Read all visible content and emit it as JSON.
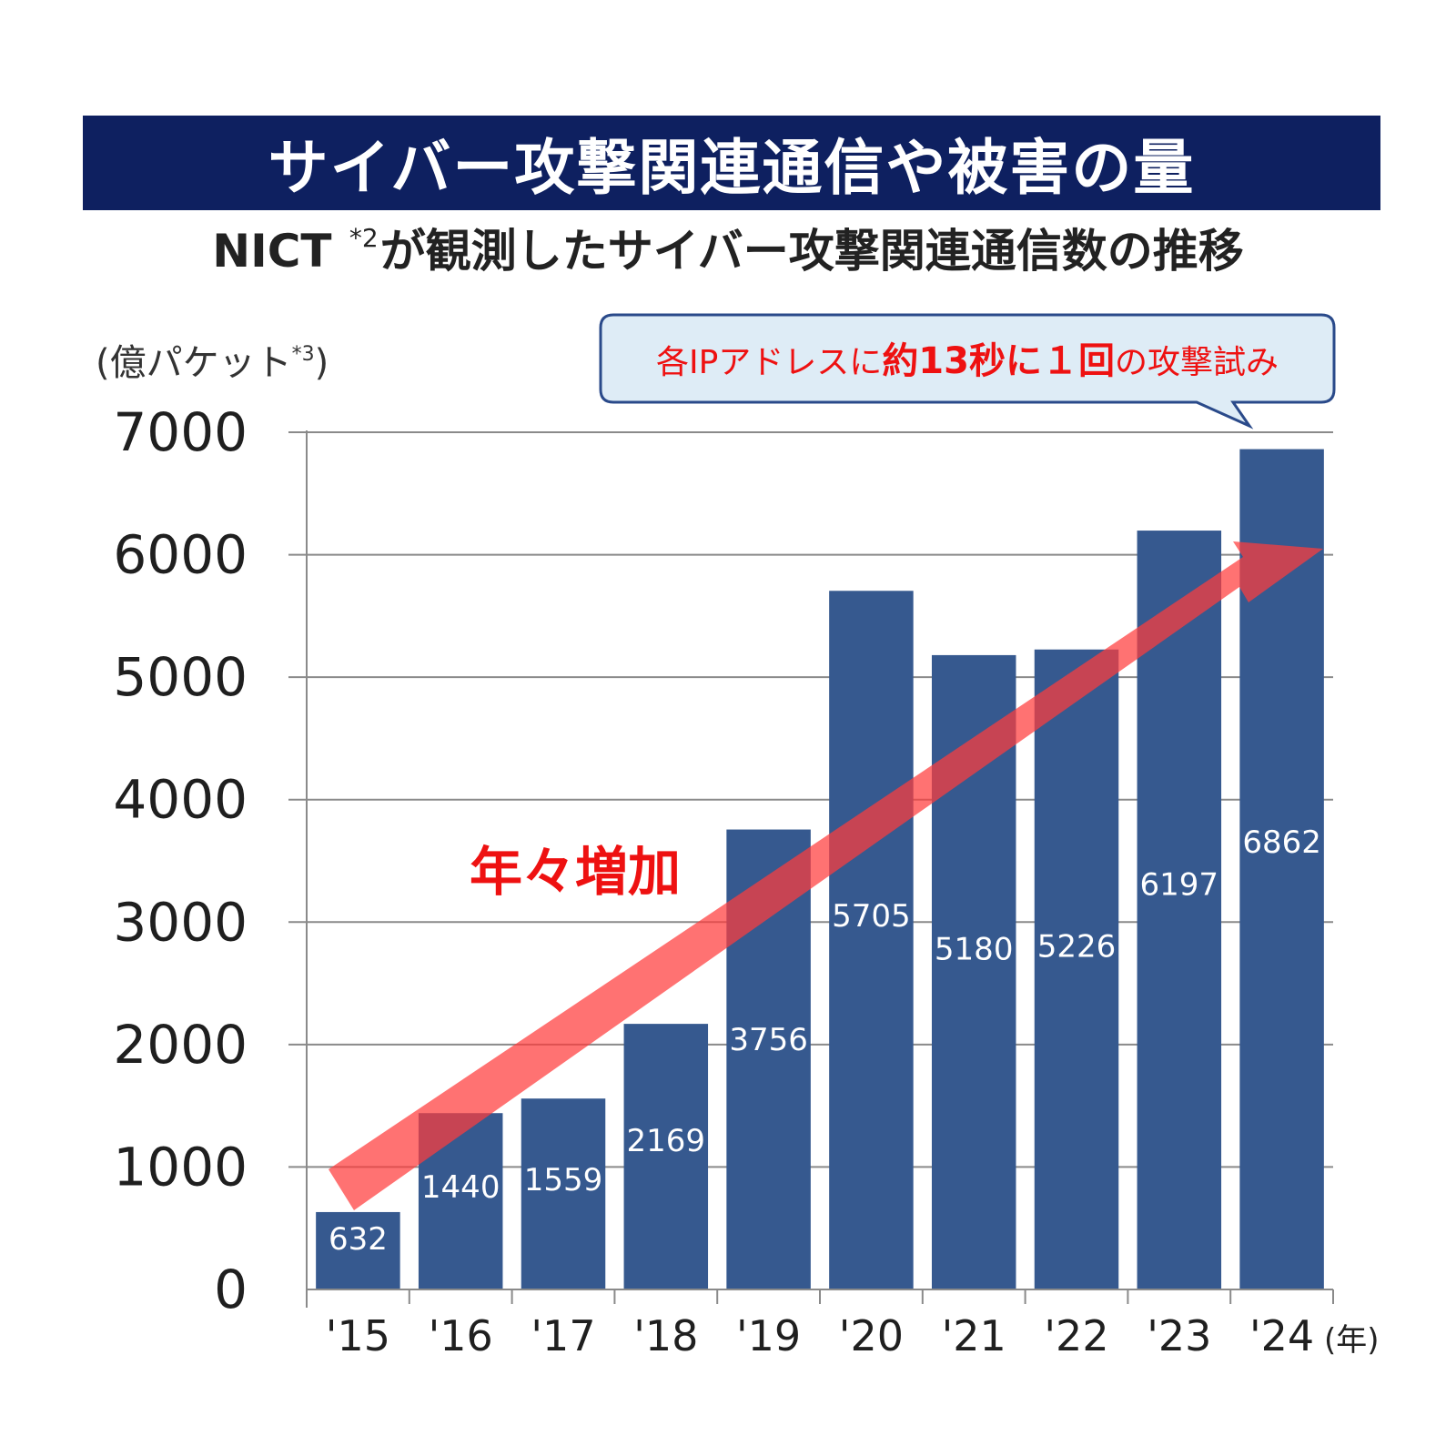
{
  "banner": {
    "title": "サイバー攻撃関連通信や被害の量"
  },
  "subtitle": {
    "prefix": "NICT ",
    "sup": "*2",
    "rest": "が観測したサイバー攻撃関連通信数の推移"
  },
  "y_unit": {
    "main": "(億パケット",
    "sup": "*3",
    "close": ")"
  },
  "x_unit": "(年)",
  "callout": {
    "parts": [
      {
        "text": "各IPアドレスに",
        "bold": false
      },
      {
        "text": "約13秒に１回",
        "bold": true
      },
      {
        "text": "の攻撃試み",
        "bold": false
      }
    ]
  },
  "trend_label": "年々増加",
  "colors": {
    "banner": "#0e2060",
    "bar": "#36598f",
    "arrow": "#ff3b3b",
    "callout_fill": "#deecf6",
    "callout_stroke": "#2a4a8a",
    "accent_text": "#ee1111"
  },
  "chart_data": {
    "type": "bar",
    "categories": [
      "'15",
      "'16",
      "'17",
      "'18",
      "'19",
      "'20",
      "'21",
      "'22",
      "'23",
      "'24"
    ],
    "values": [
      632,
      1440,
      1559,
      2169,
      3756,
      5705,
      5180,
      5226,
      6197,
      6862
    ],
    "ylim": [
      0,
      7000
    ],
    "yticks": [
      0,
      1000,
      2000,
      3000,
      4000,
      5000,
      6000,
      7000
    ],
    "grid": true,
    "legend": "none"
  }
}
